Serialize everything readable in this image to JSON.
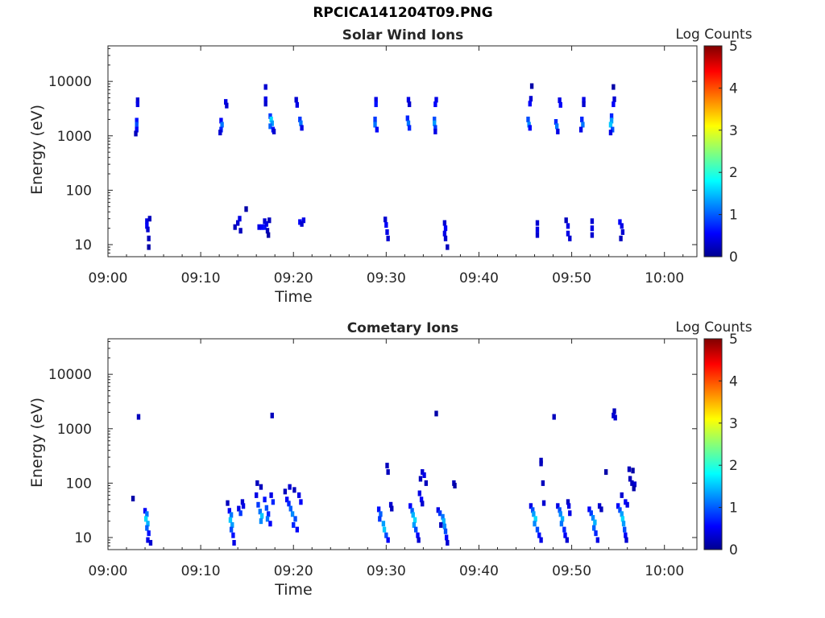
{
  "figure": {
    "title": "RPCICA141204T09.PNG"
  },
  "chart_data": [
    {
      "type": "heatmap",
      "title": "Solar Wind Ions",
      "xlabel": "Time",
      "ylabel": "Energy (eV)",
      "x_ticks": [
        "09:00",
        "09:10",
        "09:20",
        "09:30",
        "09:40",
        "09:50",
        "10:00"
      ],
      "x_tick_minutes": [
        0,
        10,
        20,
        30,
        40,
        50,
        60
      ],
      "xlim_minutes": [
        0,
        63.5
      ],
      "y_scale": "log",
      "y_ticks": [
        10,
        100,
        1000,
        10000
      ],
      "y_tick_labels": [
        "10",
        "100",
        "1000",
        "10000"
      ],
      "ylim": [
        6,
        45000
      ],
      "colorbar": {
        "label": "Log Counts",
        "ticks": [
          0,
          1,
          2,
          3,
          4,
          5
        ],
        "range": [
          0,
          5
        ],
        "colormap": "jet"
      },
      "grid": false,
      "points": [
        [
          3.2,
          4500,
          0.4
        ],
        [
          3.2,
          3800,
          0.5
        ],
        [
          3.1,
          1900,
          0.7
        ],
        [
          3.1,
          1600,
          1.0
        ],
        [
          3.1,
          1300,
          0.6
        ],
        [
          3.0,
          1100,
          0.3
        ],
        [
          4.2,
          27,
          0.5
        ],
        [
          4.2,
          22,
          0.6
        ],
        [
          4.3,
          19,
          0.4
        ],
        [
          4.4,
          13,
          0.3
        ],
        [
          4.4,
          9,
          0.2
        ],
        [
          4.5,
          30,
          0.3
        ],
        [
          12.2,
          1900,
          0.6
        ],
        [
          12.3,
          1600,
          1.2
        ],
        [
          12.2,
          1300,
          0.8
        ],
        [
          12.1,
          1150,
          0.4
        ],
        [
          12.7,
          4200,
          0.5
        ],
        [
          12.8,
          3600,
          0.4
        ],
        [
          13.7,
          21,
          0.3
        ],
        [
          14.0,
          25,
          0.4
        ],
        [
          14.2,
          30,
          0.5
        ],
        [
          14.3,
          18,
          0.3
        ],
        [
          14.9,
          45,
          0.2
        ],
        [
          17.0,
          7900,
          0.4
        ],
        [
          17.0,
          4700,
          0.5
        ],
        [
          17.0,
          3900,
          0.4
        ],
        [
          17.5,
          2300,
          0.9
        ],
        [
          17.6,
          2000,
          1.7
        ],
        [
          17.7,
          1700,
          1.4
        ],
        [
          17.5,
          1500,
          1.1
        ],
        [
          17.8,
          1300,
          0.7
        ],
        [
          17.9,
          1200,
          0.4
        ],
        [
          16.3,
          21,
          0.5
        ],
        [
          16.6,
          21,
          0.6
        ],
        [
          16.9,
          21,
          0.7
        ],
        [
          16.9,
          27,
          0.4
        ],
        [
          17.1,
          24,
          0.5
        ],
        [
          17.2,
          18,
          0.3
        ],
        [
          17.3,
          15,
          0.2
        ],
        [
          17.4,
          28,
          0.3
        ],
        [
          20.3,
          4600,
          0.4
        ],
        [
          20.4,
          3700,
          0.5
        ],
        [
          20.7,
          2000,
          0.9
        ],
        [
          20.8,
          1700,
          1.2
        ],
        [
          20.9,
          1400,
          0.5
        ],
        [
          20.7,
          26,
          0.6
        ],
        [
          21.1,
          28,
          0.5
        ],
        [
          20.9,
          24,
          0.4
        ],
        [
          28.9,
          4600,
          0.5
        ],
        [
          28.9,
          3800,
          0.7
        ],
        [
          28.8,
          2000,
          0.9
        ],
        [
          28.8,
          1600,
          1.2
        ],
        [
          29.0,
          1300,
          0.6
        ],
        [
          29.9,
          29,
          0.4
        ],
        [
          30.0,
          23,
          0.6
        ],
        [
          30.1,
          17,
          0.5
        ],
        [
          30.2,
          13,
          0.4
        ],
        [
          32.4,
          4600,
          0.5
        ],
        [
          32.5,
          3800,
          0.4
        ],
        [
          32.3,
          2100,
          0.8
        ],
        [
          32.4,
          1700,
          1.2
        ],
        [
          32.5,
          1400,
          0.8
        ],
        [
          35.4,
          4600,
          0.5
        ],
        [
          35.3,
          3800,
          0.6
        ],
        [
          35.2,
          2000,
          1.0
        ],
        [
          35.2,
          1700,
          1.4
        ],
        [
          35.3,
          1400,
          0.9
        ],
        [
          35.3,
          1200,
          0.5
        ],
        [
          36.3,
          25,
          0.4
        ],
        [
          36.4,
          20,
          0.6
        ],
        [
          36.3,
          16,
          0.5
        ],
        [
          36.4,
          13,
          0.4
        ],
        [
          36.6,
          9,
          0.3
        ],
        [
          45.7,
          8200,
          0.2
        ],
        [
          45.6,
          4800,
          0.4
        ],
        [
          45.5,
          3900,
          0.6
        ],
        [
          45.3,
          2000,
          1.0
        ],
        [
          45.4,
          1600,
          1.3
        ],
        [
          45.5,
          1400,
          0.6
        ],
        [
          46.3,
          25,
          0.4
        ],
        [
          46.3,
          19,
          0.5
        ],
        [
          46.3,
          15,
          0.4
        ],
        [
          48.7,
          4500,
          0.5
        ],
        [
          48.8,
          3700,
          0.6
        ],
        [
          48.3,
          1800,
          0.8
        ],
        [
          48.4,
          1500,
          1.2
        ],
        [
          48.5,
          1200,
          0.5
        ],
        [
          49.4,
          28,
          0.3
        ],
        [
          49.6,
          22,
          0.5
        ],
        [
          49.6,
          16,
          0.5
        ],
        [
          49.8,
          13,
          0.4
        ],
        [
          51.3,
          4600,
          0.5
        ],
        [
          51.3,
          3800,
          0.4
        ],
        [
          51.1,
          2000,
          0.8
        ],
        [
          51.2,
          1600,
          1.2
        ],
        [
          51.0,
          1300,
          0.5
        ],
        [
          52.2,
          27,
          0.4
        ],
        [
          52.2,
          20,
          0.5
        ],
        [
          52.2,
          15,
          0.4
        ],
        [
          54.5,
          7900,
          0.2
        ],
        [
          54.6,
          4700,
          0.4
        ],
        [
          54.5,
          3800,
          0.6
        ],
        [
          54.3,
          2300,
          0.8
        ],
        [
          54.3,
          1900,
          1.4
        ],
        [
          54.2,
          1600,
          1.6
        ],
        [
          54.4,
          1300,
          1.0
        ],
        [
          54.2,
          1150,
          0.5
        ],
        [
          55.2,
          26,
          0.6
        ],
        [
          55.4,
          22,
          0.5
        ],
        [
          55.5,
          17,
          0.4
        ],
        [
          55.3,
          13,
          0.3
        ]
      ]
    },
    {
      "type": "heatmap",
      "title": "Cometary Ions",
      "xlabel": "Time",
      "ylabel": "Energy (eV)",
      "x_ticks": [
        "09:00",
        "09:10",
        "09:20",
        "09:30",
        "09:40",
        "09:50",
        "10:00"
      ],
      "x_tick_minutes": [
        0,
        10,
        20,
        30,
        40,
        50,
        60
      ],
      "xlim_minutes": [
        0,
        63.5
      ],
      "y_scale": "log",
      "y_ticks": [
        10,
        100,
        1000,
        10000
      ],
      "y_tick_labels": [
        "10",
        "100",
        "1000",
        "10000"
      ],
      "ylim": [
        6,
        45000
      ],
      "colorbar": {
        "label": "Log Counts",
        "ticks": [
          0,
          1,
          2,
          3,
          4,
          5
        ],
        "range": [
          0,
          5
        ],
        "colormap": "jet"
      },
      "grid": false,
      "points": [
        [
          3.3,
          1650,
          0.3
        ],
        [
          2.7,
          52,
          0.2
        ],
        [
          4.0,
          31,
          0.6
        ],
        [
          4.2,
          27,
          1.2
        ],
        [
          4.1,
          22,
          1.7
        ],
        [
          4.3,
          18,
          1.5
        ],
        [
          4.2,
          15,
          1.1
        ],
        [
          4.4,
          12,
          0.7
        ],
        [
          4.3,
          9,
          0.5
        ],
        [
          4.6,
          8,
          0.4
        ],
        [
          12.9,
          43,
          0.3
        ],
        [
          13.1,
          31,
          0.6
        ],
        [
          13.3,
          26,
          1.2
        ],
        [
          13.2,
          21,
          1.6
        ],
        [
          13.4,
          17,
          1.4
        ],
        [
          13.3,
          14,
          1.0
        ],
        [
          13.5,
          11,
          0.7
        ],
        [
          13.6,
          8,
          0.5
        ],
        [
          14.1,
          34,
          0.5
        ],
        [
          14.3,
          28,
          0.9
        ],
        [
          14.5,
          45,
          0.4
        ],
        [
          14.6,
          38,
          0.5
        ],
        [
          16.0,
          60,
          0.5
        ],
        [
          16.2,
          40,
          0.9
        ],
        [
          16.4,
          30,
          1.2
        ],
        [
          16.6,
          25,
          1.6
        ],
        [
          16.5,
          20,
          1.3
        ],
        [
          16.9,
          50,
          0.7
        ],
        [
          17.1,
          35,
          1.0
        ],
        [
          17.3,
          27,
          0.8
        ],
        [
          17.2,
          22,
          1.2
        ],
        [
          17.5,
          18,
          0.6
        ],
        [
          16.1,
          100,
          0.3
        ],
        [
          16.5,
          85,
          0.3
        ],
        [
          17.7,
          1750,
          0.3
        ],
        [
          17.6,
          60,
          0.5
        ],
        [
          17.8,
          45,
          0.8
        ],
        [
          19.1,
          70,
          0.3
        ],
        [
          19.3,
          50,
          0.6
        ],
        [
          19.5,
          42,
          0.8
        ],
        [
          19.7,
          34,
          1.1
        ],
        [
          19.9,
          27,
          1.3
        ],
        [
          20.2,
          22,
          1.0
        ],
        [
          20.0,
          17,
          0.8
        ],
        [
          20.4,
          14,
          0.6
        ],
        [
          19.6,
          85,
          0.4
        ],
        [
          20.1,
          75,
          0.3
        ],
        [
          20.6,
          60,
          0.5
        ],
        [
          20.8,
          45,
          0.6
        ],
        [
          29.2,
          33,
          0.7
        ],
        [
          29.4,
          27,
          1.1
        ],
        [
          29.3,
          22,
          0.9
        ],
        [
          29.7,
          18,
          1.4
        ],
        [
          29.8,
          14,
          1.6
        ],
        [
          30.0,
          11,
          1.0
        ],
        [
          30.2,
          9,
          0.6
        ],
        [
          30.1,
          210,
          0.3
        ],
        [
          30.2,
          160,
          0.3
        ],
        [
          30.5,
          40,
          0.4
        ],
        [
          30.6,
          34,
          0.3
        ],
        [
          32.6,
          38,
          0.6
        ],
        [
          32.8,
          31,
          1.1
        ],
        [
          32.9,
          26,
          1.5
        ],
        [
          33.1,
          21,
          1.7
        ],
        [
          33.0,
          17,
          1.4
        ],
        [
          33.2,
          14,
          1.0
        ],
        [
          33.4,
          11,
          0.6
        ],
        [
          33.5,
          9,
          0.4
        ],
        [
          33.6,
          65,
          0.5
        ],
        [
          33.8,
          50,
          0.6
        ],
        [
          33.9,
          42,
          0.4
        ],
        [
          33.9,
          160,
          0.4
        ],
        [
          34.1,
          140,
          0.5
        ],
        [
          33.7,
          120,
          0.3
        ],
        [
          34.3,
          100,
          0.3
        ],
        [
          35.4,
          1900,
          0.2
        ],
        [
          35.6,
          32,
          0.5
        ],
        [
          35.8,
          28,
          0.9
        ],
        [
          36.1,
          24,
          1.2
        ],
        [
          36.2,
          20,
          1.5
        ],
        [
          36.3,
          16,
          1.3
        ],
        [
          36.4,
          13,
          1.0
        ],
        [
          36.5,
          10,
          0.6
        ],
        [
          36.6,
          8,
          0.4
        ],
        [
          35.9,
          17,
          0.3
        ],
        [
          37.3,
          100,
          0.3
        ],
        [
          37.4,
          90,
          0.2
        ],
        [
          45.6,
          38,
          0.5
        ],
        [
          45.8,
          32,
          1.0
        ],
        [
          45.9,
          27,
          1.4
        ],
        [
          46.1,
          22,
          1.7
        ],
        [
          46.0,
          18,
          1.3
        ],
        [
          46.3,
          14,
          1.0
        ],
        [
          46.5,
          11,
          0.7
        ],
        [
          46.7,
          9,
          0.5
        ],
        [
          46.7,
          260,
          0.3
        ],
        [
          46.7,
          230,
          0.3
        ],
        [
          46.9,
          100,
          0.3
        ],
        [
          47.0,
          43,
          0.4
        ],
        [
          48.1,
          1650,
          0.3
        ],
        [
          48.5,
          38,
          0.5
        ],
        [
          48.7,
          32,
          1.0
        ],
        [
          48.8,
          27,
          1.3
        ],
        [
          49.0,
          22,
          1.5
        ],
        [
          48.9,
          18,
          1.2
        ],
        [
          49.2,
          14,
          0.8
        ],
        [
          49.3,
          11,
          0.6
        ],
        [
          49.5,
          9,
          0.4
        ],
        [
          49.6,
          45,
          0.3
        ],
        [
          49.7,
          38,
          0.5
        ],
        [
          49.8,
          28,
          0.5
        ],
        [
          51.9,
          33,
          0.6
        ],
        [
          52.1,
          28,
          0.9
        ],
        [
          52.3,
          23,
          1.3
        ],
        [
          52.5,
          19,
          1.5
        ],
        [
          52.4,
          15,
          1.1
        ],
        [
          52.6,
          12,
          0.8
        ],
        [
          52.8,
          9,
          0.5
        ],
        [
          53.0,
          38,
          0.4
        ],
        [
          53.2,
          33,
          0.3
        ],
        [
          53.7,
          160,
          0.2
        ],
        [
          54.6,
          2100,
          0.3
        ],
        [
          54.5,
          1750,
          0.4
        ],
        [
          54.7,
          1600,
          0.4
        ],
        [
          55.0,
          38,
          0.6
        ],
        [
          55.2,
          32,
          1.0
        ],
        [
          55.4,
          27,
          1.4
        ],
        [
          55.5,
          22,
          1.7
        ],
        [
          55.6,
          18,
          1.4
        ],
        [
          55.7,
          14,
          1.0
        ],
        [
          55.8,
          11,
          0.6
        ],
        [
          55.9,
          9,
          0.4
        ],
        [
          55.4,
          60,
          0.4
        ],
        [
          55.8,
          45,
          0.6
        ],
        [
          56.0,
          40,
          0.5
        ],
        [
          56.2,
          180,
          0.3
        ],
        [
          56.6,
          170,
          0.2
        ],
        [
          56.3,
          120,
          0.3
        ],
        [
          56.5,
          100,
          0.3
        ],
        [
          56.8,
          95,
          0.4
        ],
        [
          56.7,
          80,
          0.2
        ]
      ]
    }
  ]
}
